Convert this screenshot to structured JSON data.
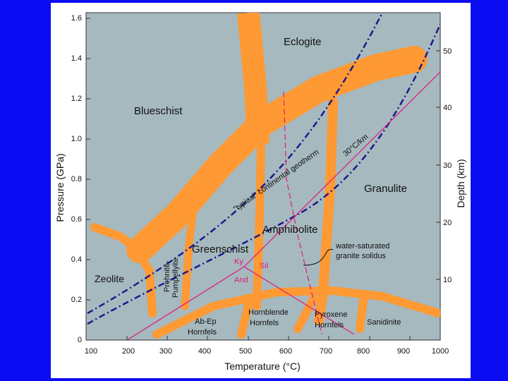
{
  "colors": {
    "background": "#0c0cf2",
    "plot_fill": "#a6b9bf",
    "facies_boundary": "#ff9933",
    "geotherm": "#1a1a8c",
    "aluminosilicate": "#e0197d"
  },
  "axes": {
    "x_title": "Temperature (°C)",
    "y_left_title": "Pressure (GPa)",
    "y_right_title": "Depth (km)",
    "x_ticks": [
      "100",
      "200",
      "300",
      "400",
      "500",
      "600",
      "700",
      "800",
      "900",
      "1000"
    ],
    "y_left_ticks": [
      "0",
      "0.2",
      "0.4",
      "0.6",
      "0.8",
      "1.0",
      "1.2",
      "1.4",
      "1.6"
    ],
    "y_right_ticks": [
      "10",
      "20",
      "30",
      "40",
      "50"
    ]
  },
  "facies": {
    "eclogite": "Eclogite",
    "blueschist": "Blueschist",
    "granulite": "Granulite",
    "amphibolite": "Amphibolite",
    "greenschist": "Greenschist",
    "zeolite": "Zeolite",
    "prehnite_line1": "Prehnite-",
    "prehnite_line2": "Pumpellyite",
    "abep_line1": "Ab-Ep",
    "abep_line2": "Hornfels",
    "hbl_line1": "Hornblende",
    "hbl_line2": "Hornfels",
    "px_line1": "Pyroxene",
    "px_line2": "Hornfels",
    "sanidinite": "Sanidinite"
  },
  "annotations": {
    "geotherm_continental": "\"typical\" continental geotherm",
    "geotherm_30": "30°C/km",
    "solidus_line1": "water-saturated",
    "solidus_line2": "granite solidus"
  },
  "minerals": {
    "ky": "Ky",
    "sil": "Sil",
    "and": "And"
  }
}
